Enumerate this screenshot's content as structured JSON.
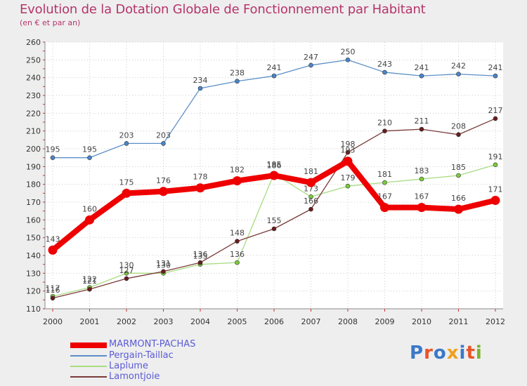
{
  "chart_data": {
    "type": "line",
    "title": "Evolution de la Dotation Globale de Fonctionnement par Habitant",
    "subtitle": "(en € et par an)",
    "x": [
      "2000",
      "2001",
      "2002",
      "2003",
      "2004",
      "2005",
      "2006",
      "2007",
      "2008",
      "2009",
      "2010",
      "2011",
      "2012"
    ],
    "ylim": [
      110,
      260
    ],
    "yticks": [
      110,
      120,
      130,
      140,
      150,
      160,
      170,
      180,
      190,
      200,
      210,
      220,
      230,
      240,
      250,
      260
    ],
    "series": [
      {
        "name": "Pergain-Taillac",
        "color": "#5b8fc7",
        "point_color": "#4a86c8",
        "values": [
          195,
          195,
          203,
          203,
          234,
          238,
          241,
          247,
          250,
          243,
          241,
          242,
          241
        ]
      },
      {
        "name": "Laplume",
        "color": "#a8dc80",
        "point_color": "#7ccc3c",
        "values": [
          117,
          122,
          130,
          130,
          135,
          136,
          186,
          173,
          179,
          181,
          183,
          185,
          191
        ]
      },
      {
        "name": "Lamontjoie",
        "color": "#7a3a3a",
        "point_color": "#6b1c1c",
        "values": [
          116,
          121,
          127,
          131,
          136,
          148,
          155,
          166,
          198,
          210,
          211,
          208,
          217
        ]
      },
      {
        "name": "MARMONT-PACHAS",
        "color": "#ee0000",
        "point_color": "#ee0000",
        "values": [
          143,
          160,
          175,
          176,
          178,
          182,
          185,
          181,
          193,
          167,
          167,
          166,
          171
        ]
      }
    ]
  },
  "legend": {
    "marmont": "MARMONT-PACHAS",
    "pergain": "Pergain-Taillac",
    "laplume": "Laplume",
    "lamontjoie": "Lamontjoie"
  },
  "logo": {
    "text": "Proxiti"
  }
}
